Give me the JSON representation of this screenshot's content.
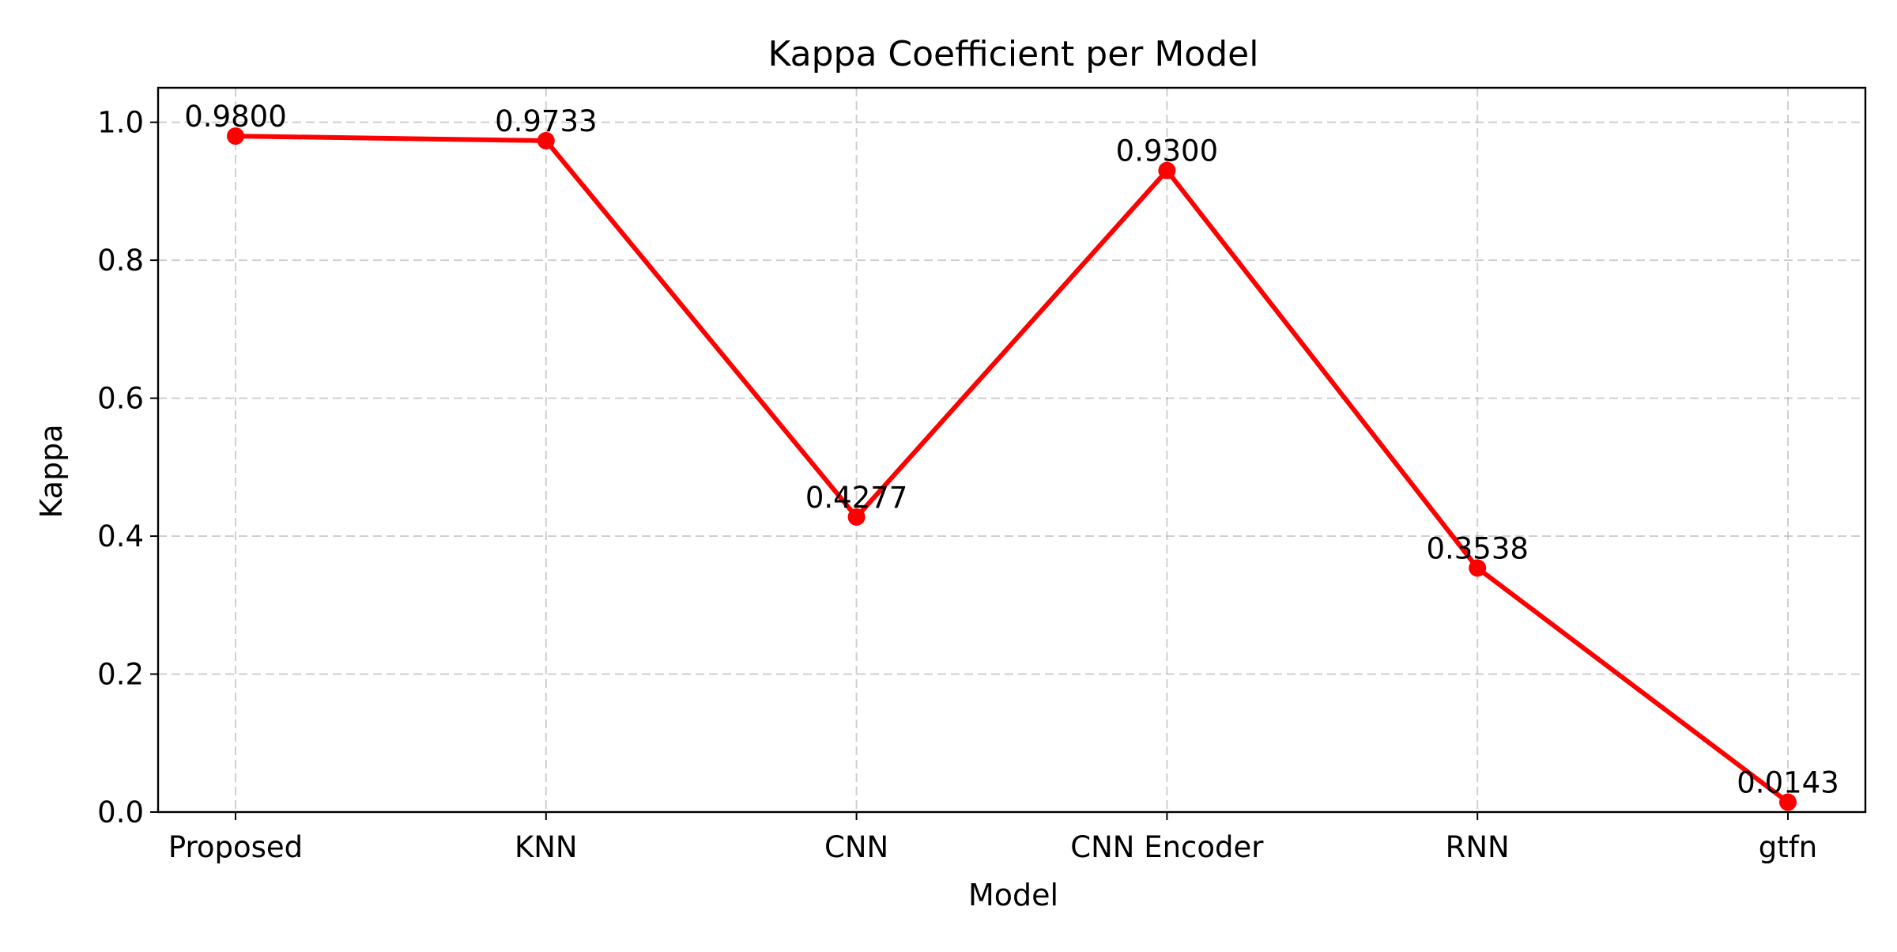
{
  "chart_data": {
    "type": "line",
    "title": "Kappa Coefficient per Model",
    "xlabel": "Model",
    "ylabel": "Kappa",
    "categories": [
      "Proposed",
      "KNN",
      "CNN",
      "CNN Encoder",
      "RNN",
      "gtfn"
    ],
    "series": [
      {
        "values": [
          0.98,
          0.9733,
          0.4277,
          0.93,
          0.3538,
          0.0143
        ],
        "color": "#ff0000",
        "marker": "circle"
      }
    ],
    "data_labels": [
      "0.9800",
      "0.9733",
      "0.4277",
      "0.9300",
      "0.3538",
      "0.0143"
    ],
    "ylim": [
      0.0,
      1.05
    ],
    "yticks": [
      0.0,
      0.2,
      0.4,
      0.6,
      0.8,
      1.0
    ],
    "ytick_labels": [
      "0.0",
      "0.2",
      "0.4",
      "0.6",
      "0.8",
      "1.0"
    ],
    "grid": true,
    "grid_style": "dashed"
  }
}
